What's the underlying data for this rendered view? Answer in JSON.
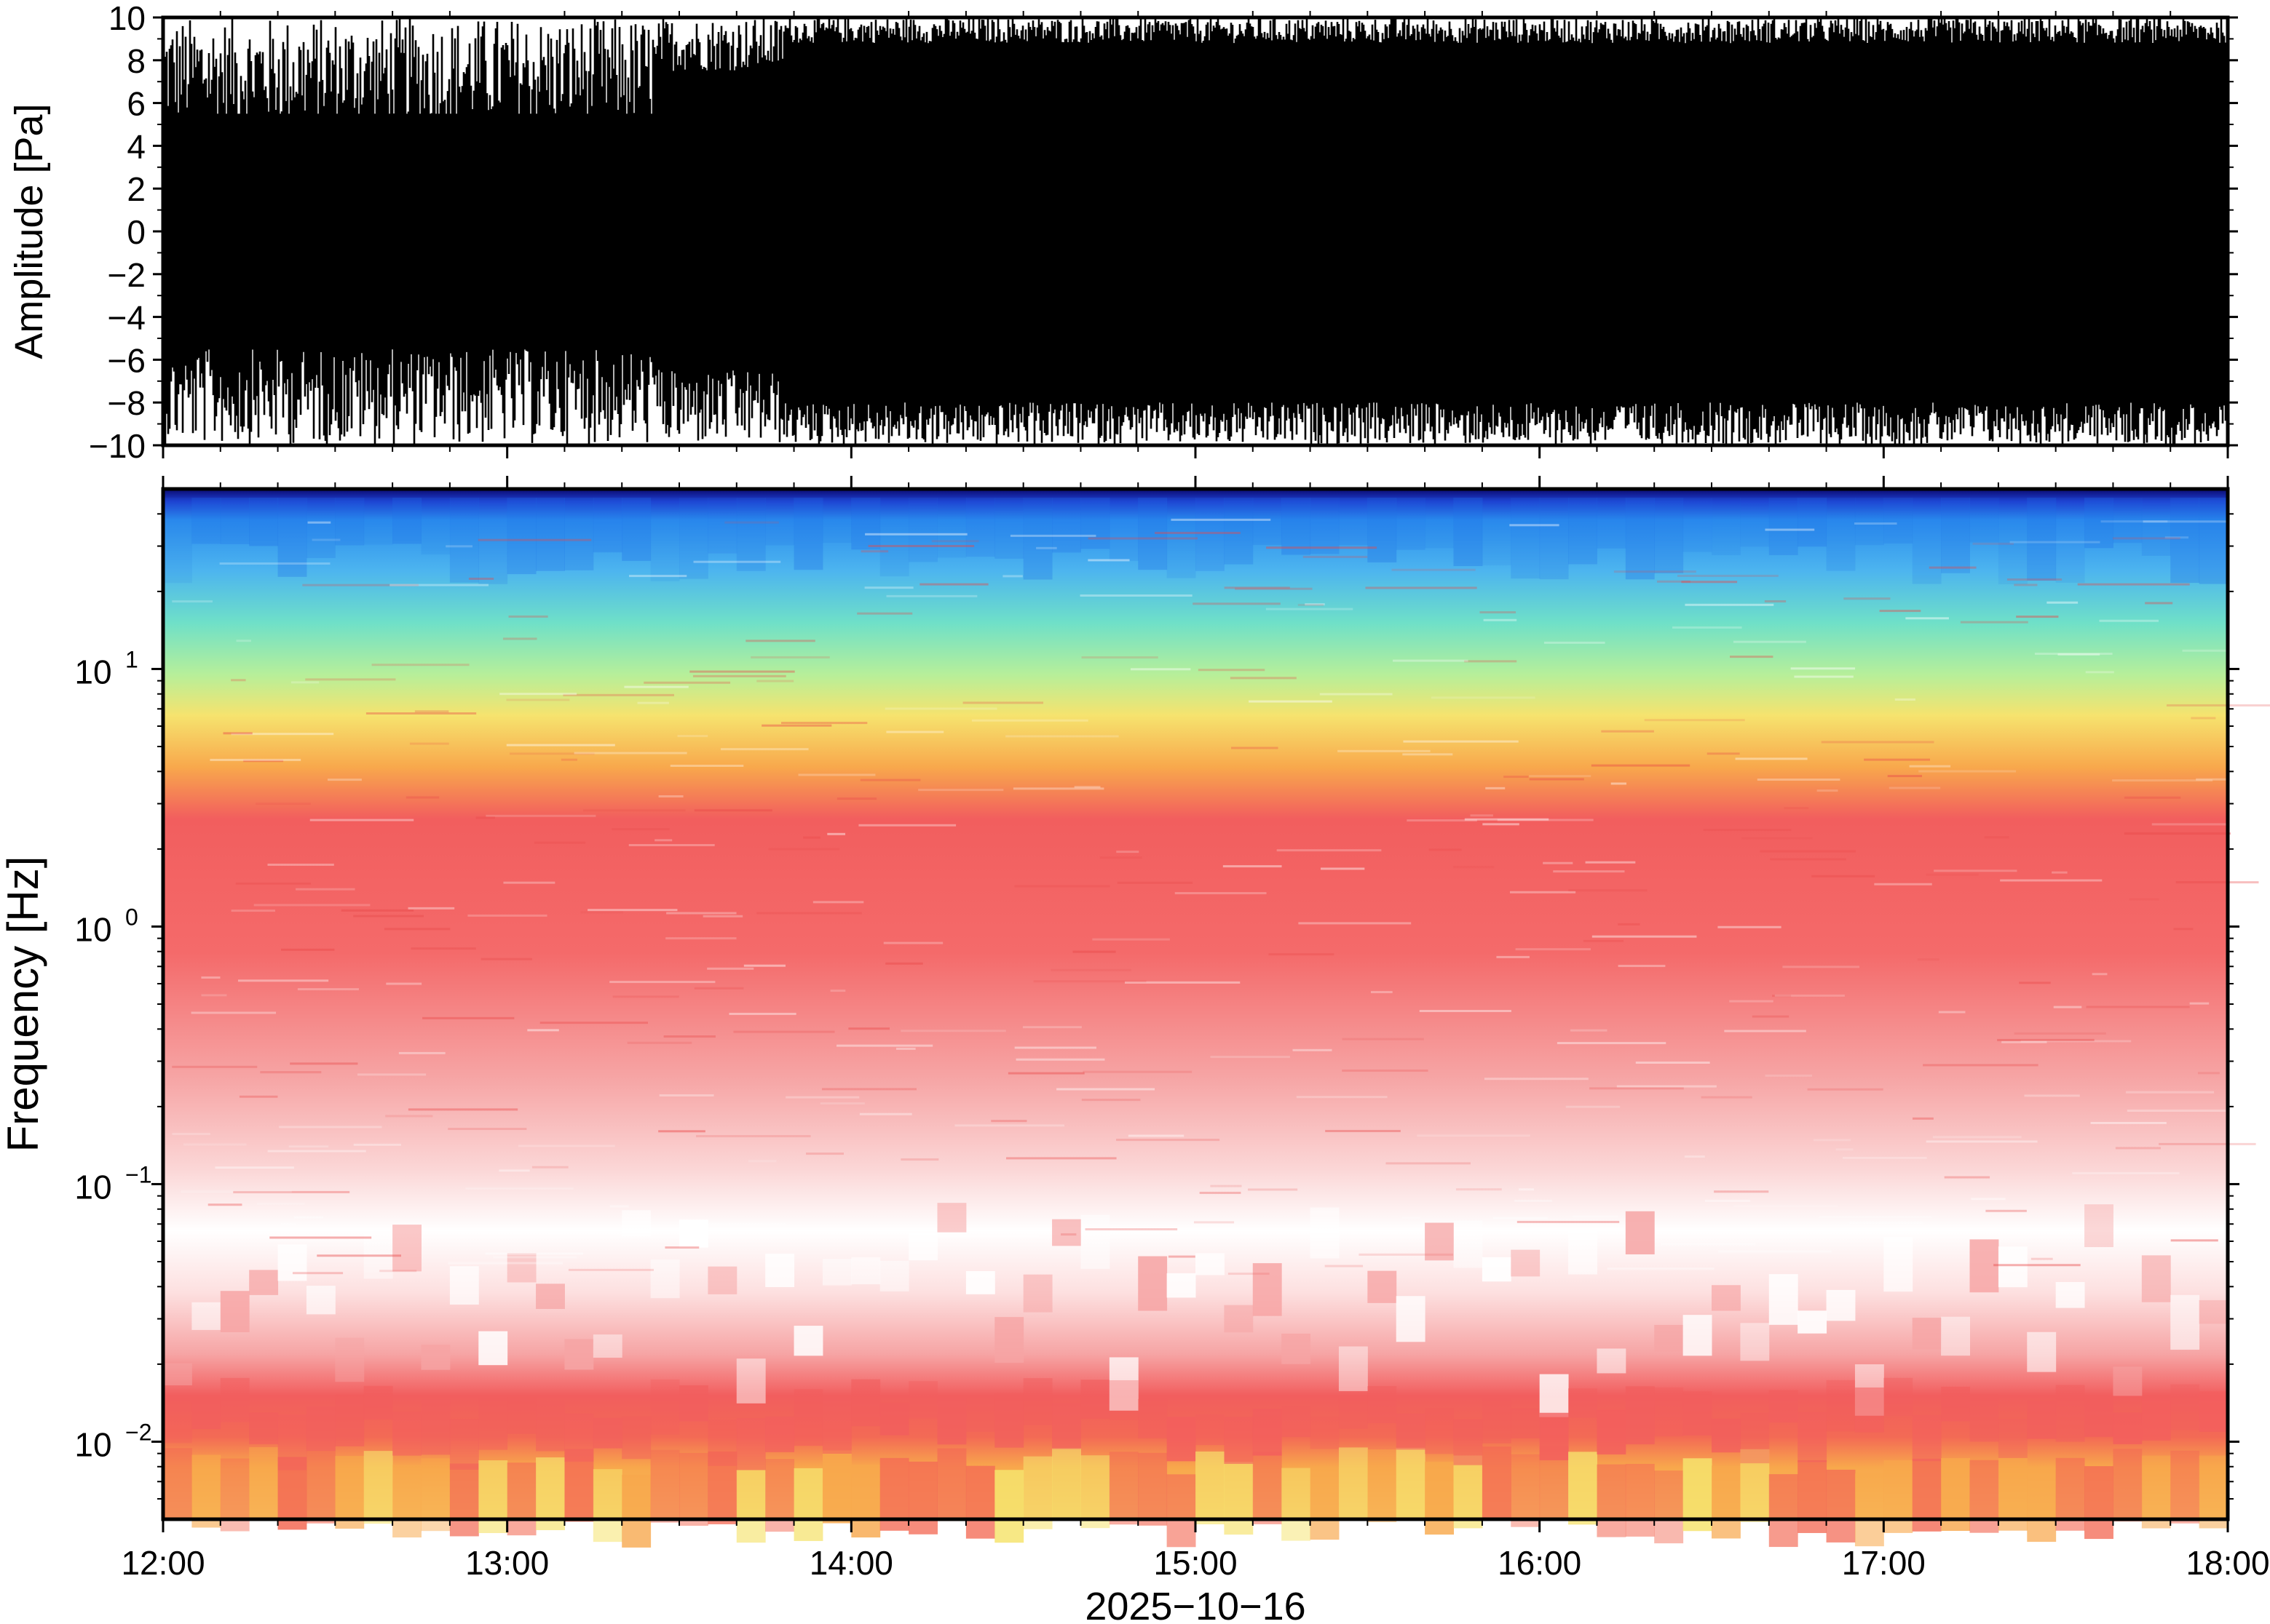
{
  "chart_data": [
    {
      "type": "line",
      "ylabel": "Amplitude [Pa]",
      "ylim": [
        -10,
        10
      ],
      "yticks": [
        "10",
        "8",
        "6",
        "4",
        "2",
        "0",
        "−2",
        "−4",
        "−6",
        "−8",
        "−10"
      ],
      "ytick_values": [
        10,
        8,
        6,
        4,
        2,
        0,
        -2,
        -4,
        -6,
        -8,
        -10
      ],
      "xlim": [
        "12:00",
        "18:00"
      ],
      "series_color": "#000000"
    },
    {
      "type": "heatmap",
      "ylabel": "Frequency [Hz]",
      "yscale": "log",
      "ylim": [
        0.005,
        50
      ],
      "yticks": [
        {
          "base": "10",
          "exp": "1",
          "value": 10
        },
        {
          "base": "10",
          "exp": "0",
          "value": 1
        },
        {
          "base": "10",
          "exp": "−1",
          "value": 0.1
        },
        {
          "base": "10",
          "exp": "−2",
          "value": 0.01
        }
      ],
      "xlabel": "2025−10−16",
      "xticks": [
        "12:00",
        "13:00",
        "14:00",
        "15:00",
        "16:00",
        "17:00",
        "18:00"
      ],
      "colormap": [
        "#0a0a6e",
        "#1e6fe6",
        "#3aa6f2",
        "#6fe0c8",
        "#b6ef9a",
        "#f6e36e",
        "#f8a84c",
        "#f25e5e",
        "#f6a4a4",
        "#ffffff"
      ]
    }
  ]
}
